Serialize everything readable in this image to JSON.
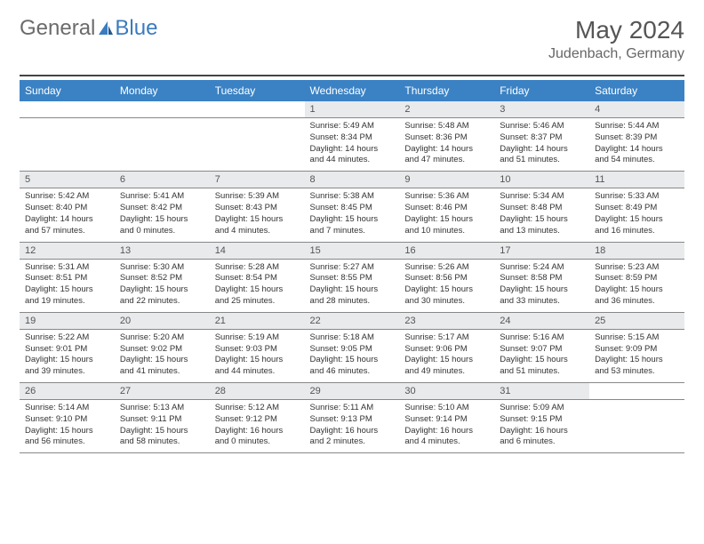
{
  "brand": {
    "part1": "General",
    "part2": "Blue"
  },
  "title": "May 2024",
  "location": "Judenbach, Germany",
  "weekdays": [
    "Sunday",
    "Monday",
    "Tuesday",
    "Wednesday",
    "Thursday",
    "Friday",
    "Saturday"
  ],
  "colors": {
    "header_bg": "#3b82c4",
    "header_text": "#ffffff",
    "daynum_bg": "#e8eaec",
    "border": "#888888",
    "top_rule": "#444444",
    "logo_gray": "#6b6b6b",
    "logo_blue": "#3b7bbf"
  },
  "weeks": [
    [
      null,
      null,
      null,
      {
        "n": "1",
        "sr": "5:49 AM",
        "ss": "8:34 PM",
        "dl": "14 hours and 44 minutes."
      },
      {
        "n": "2",
        "sr": "5:48 AM",
        "ss": "8:36 PM",
        "dl": "14 hours and 47 minutes."
      },
      {
        "n": "3",
        "sr": "5:46 AM",
        "ss": "8:37 PM",
        "dl": "14 hours and 51 minutes."
      },
      {
        "n": "4",
        "sr": "5:44 AM",
        "ss": "8:39 PM",
        "dl": "14 hours and 54 minutes."
      }
    ],
    [
      {
        "n": "5",
        "sr": "5:42 AM",
        "ss": "8:40 PM",
        "dl": "14 hours and 57 minutes."
      },
      {
        "n": "6",
        "sr": "5:41 AM",
        "ss": "8:42 PM",
        "dl": "15 hours and 0 minutes."
      },
      {
        "n": "7",
        "sr": "5:39 AM",
        "ss": "8:43 PM",
        "dl": "15 hours and 4 minutes."
      },
      {
        "n": "8",
        "sr": "5:38 AM",
        "ss": "8:45 PM",
        "dl": "15 hours and 7 minutes."
      },
      {
        "n": "9",
        "sr": "5:36 AM",
        "ss": "8:46 PM",
        "dl": "15 hours and 10 minutes."
      },
      {
        "n": "10",
        "sr": "5:34 AM",
        "ss": "8:48 PM",
        "dl": "15 hours and 13 minutes."
      },
      {
        "n": "11",
        "sr": "5:33 AM",
        "ss": "8:49 PM",
        "dl": "15 hours and 16 minutes."
      }
    ],
    [
      {
        "n": "12",
        "sr": "5:31 AM",
        "ss": "8:51 PM",
        "dl": "15 hours and 19 minutes."
      },
      {
        "n": "13",
        "sr": "5:30 AM",
        "ss": "8:52 PM",
        "dl": "15 hours and 22 minutes."
      },
      {
        "n": "14",
        "sr": "5:28 AM",
        "ss": "8:54 PM",
        "dl": "15 hours and 25 minutes."
      },
      {
        "n": "15",
        "sr": "5:27 AM",
        "ss": "8:55 PM",
        "dl": "15 hours and 28 minutes."
      },
      {
        "n": "16",
        "sr": "5:26 AM",
        "ss": "8:56 PM",
        "dl": "15 hours and 30 minutes."
      },
      {
        "n": "17",
        "sr": "5:24 AM",
        "ss": "8:58 PM",
        "dl": "15 hours and 33 minutes."
      },
      {
        "n": "18",
        "sr": "5:23 AM",
        "ss": "8:59 PM",
        "dl": "15 hours and 36 minutes."
      }
    ],
    [
      {
        "n": "19",
        "sr": "5:22 AM",
        "ss": "9:01 PM",
        "dl": "15 hours and 39 minutes."
      },
      {
        "n": "20",
        "sr": "5:20 AM",
        "ss": "9:02 PM",
        "dl": "15 hours and 41 minutes."
      },
      {
        "n": "21",
        "sr": "5:19 AM",
        "ss": "9:03 PM",
        "dl": "15 hours and 44 minutes."
      },
      {
        "n": "22",
        "sr": "5:18 AM",
        "ss": "9:05 PM",
        "dl": "15 hours and 46 minutes."
      },
      {
        "n": "23",
        "sr": "5:17 AM",
        "ss": "9:06 PM",
        "dl": "15 hours and 49 minutes."
      },
      {
        "n": "24",
        "sr": "5:16 AM",
        "ss": "9:07 PM",
        "dl": "15 hours and 51 minutes."
      },
      {
        "n": "25",
        "sr": "5:15 AM",
        "ss": "9:09 PM",
        "dl": "15 hours and 53 minutes."
      }
    ],
    [
      {
        "n": "26",
        "sr": "5:14 AM",
        "ss": "9:10 PM",
        "dl": "15 hours and 56 minutes."
      },
      {
        "n": "27",
        "sr": "5:13 AM",
        "ss": "9:11 PM",
        "dl": "15 hours and 58 minutes."
      },
      {
        "n": "28",
        "sr": "5:12 AM",
        "ss": "9:12 PM",
        "dl": "16 hours and 0 minutes."
      },
      {
        "n": "29",
        "sr": "5:11 AM",
        "ss": "9:13 PM",
        "dl": "16 hours and 2 minutes."
      },
      {
        "n": "30",
        "sr": "5:10 AM",
        "ss": "9:14 PM",
        "dl": "16 hours and 4 minutes."
      },
      {
        "n": "31",
        "sr": "5:09 AM",
        "ss": "9:15 PM",
        "dl": "16 hours and 6 minutes."
      },
      null
    ]
  ],
  "labels": {
    "sunrise": "Sunrise:",
    "sunset": "Sunset:",
    "daylight": "Daylight:"
  }
}
